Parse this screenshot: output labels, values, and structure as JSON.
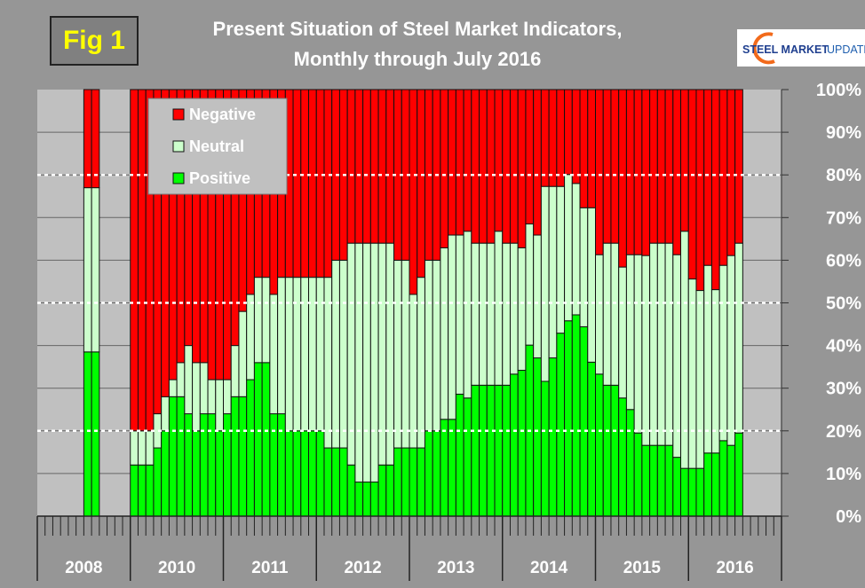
{
  "figure_label": "Fig 1",
  "logo_text": "STEEL MARKET UPDATE",
  "chart_data": {
    "type": "bar",
    "stacked": true,
    "percent": true,
    "title": [
      "Present Situation of Steel Market Indicators,",
      "Monthly through July 2016"
    ],
    "xlabel": "",
    "ylabel": "",
    "ylim": [
      0,
      100
    ],
    "yticks": [
      "0%",
      "10%",
      "20%",
      "30%",
      "40%",
      "50%",
      "60%",
      "70%",
      "80%",
      "90%",
      "100%"
    ],
    "highlight_gridlines": [
      20,
      50,
      80
    ],
    "year_labels": [
      "2008",
      "2010",
      "2011",
      "2012",
      "2013",
      "2014",
      "2015",
      "2016"
    ],
    "legend_position": "top-left",
    "colors": {
      "Negative": "#ff0000",
      "Neutral": "#ccffcc",
      "Positive": "#00ff00"
    },
    "months": [
      "2008-07",
      "2008-08",
      "2010-01",
      "2010-02",
      "2010-03",
      "2010-04",
      "2010-05",
      "2010-06",
      "2010-07",
      "2010-08",
      "2010-09",
      "2010-10",
      "2010-11",
      "2010-12",
      "2011-01",
      "2011-02",
      "2011-03",
      "2011-04",
      "2011-05",
      "2011-06",
      "2011-07",
      "2011-08",
      "2011-09",
      "2011-10",
      "2011-11",
      "2011-12",
      "2012-01",
      "2012-02",
      "2012-03",
      "2012-04",
      "2012-05",
      "2012-06",
      "2012-07",
      "2012-08",
      "2012-09",
      "2012-10",
      "2012-11",
      "2012-12",
      "2013-01",
      "2013-02",
      "2013-03",
      "2013-04",
      "2013-05",
      "2013-06",
      "2013-07",
      "2013-08",
      "2013-09",
      "2013-10",
      "2013-11",
      "2013-12",
      "2014-01",
      "2014-02",
      "2014-03",
      "2014-04",
      "2014-05",
      "2014-06",
      "2014-07",
      "2014-08",
      "2014-09",
      "2014-10",
      "2014-11",
      "2014-12",
      "2015-01",
      "2015-02",
      "2015-03",
      "2015-04",
      "2015-05",
      "2015-06",
      "2015-07",
      "2015-08",
      "2015-09",
      "2015-10",
      "2015-11",
      "2015-12",
      "2016-01",
      "2016-02",
      "2016-03",
      "2016-04",
      "2016-05",
      "2016-06",
      "2016-07"
    ],
    "series": [
      {
        "name": "Positive",
        "values": [
          38.5,
          38.5,
          12,
          12,
          12,
          16,
          20,
          28,
          28,
          24,
          20,
          24,
          24,
          20,
          24,
          28,
          28,
          32,
          36,
          36,
          24,
          24,
          20,
          20,
          20,
          20,
          20,
          16,
          16,
          16,
          12,
          8,
          8,
          8,
          12,
          12,
          16,
          16,
          16,
          16,
          20,
          20,
          22.7,
          22.7,
          28.6,
          27.7,
          30.7,
          30.7,
          30.7,
          30.7,
          30.7,
          33.3,
          34.2,
          40.1,
          37.1,
          31.6,
          37.1,
          42.9,
          45.8,
          47.2,
          44.4,
          36.1,
          33.3,
          30.7,
          30.7,
          27.7,
          25,
          19.5,
          16.6,
          16.6,
          16.6,
          16.6,
          13.8,
          11.2,
          11.2,
          11.2,
          14.8,
          14.8,
          17.7,
          16.6,
          19.5
        ]
      },
      {
        "name": "Neutral",
        "values": [
          38.5,
          38.5,
          8,
          8,
          8,
          8,
          8,
          4,
          8,
          16,
          16,
          12,
          8,
          12,
          8,
          12,
          20,
          20,
          20,
          20,
          28,
          32,
          36,
          36,
          36,
          36,
          36,
          40,
          44,
          44,
          52,
          56,
          56,
          56,
          52,
          52,
          44,
          44,
          36,
          40,
          40,
          40,
          40.2,
          43.2,
          37.3,
          39.1,
          33.3,
          33.3,
          33.3,
          36.1,
          33.3,
          30.7,
          28.7,
          28.4,
          28.8,
          45.7,
          40.2,
          34.4,
          34.3,
          30.8,
          27.9,
          36.2,
          28,
          33.3,
          33.3,
          30.7,
          36.3,
          41.8,
          44.5,
          47.4,
          47.4,
          47.4,
          47.5,
          55.6,
          44.4,
          41.7,
          44,
          38.3,
          41.1,
          44.5,
          44.5
        ]
      },
      {
        "name": "Negative",
        "values": [
          23,
          23,
          80,
          80,
          80,
          76,
          72,
          68,
          64,
          60,
          64,
          64,
          68,
          68,
          68,
          60,
          52,
          48,
          44,
          44,
          48,
          44,
          44,
          44,
          44,
          44,
          44,
          44,
          40,
          40,
          36,
          36,
          36,
          36,
          36,
          36,
          40,
          40,
          48,
          44,
          40,
          40,
          37.1,
          34.1,
          34.1,
          33.2,
          36,
          36,
          36,
          33.2,
          36,
          36,
          37.1,
          31.5,
          34.1,
          22.7,
          22.7,
          22.7,
          19.9,
          22,
          27.7,
          27.7,
          38.7,
          36,
          36,
          41.6,
          38.7,
          38.7,
          38.9,
          36,
          36,
          36,
          38.7,
          33.2,
          44.4,
          47.1,
          41.2,
          46.9,
          41.2,
          38.9,
          36
        ]
      }
    ]
  }
}
